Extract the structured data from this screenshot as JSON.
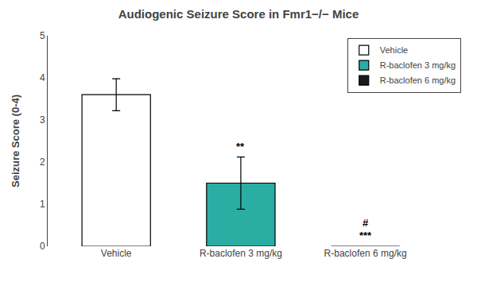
{
  "chart_data": {
    "type": "bar",
    "title": "Audiogenic Seizure Score in Fmr1−/− Mice",
    "ylabel": "Seizure Score (0-4)",
    "categories": [
      "Vehicle",
      "R-baclofen 3 mg/kg",
      "R-baclofen 6 mg/kg"
    ],
    "values": [
      3.6,
      1.5,
      0.0
    ],
    "errors": [
      0.38,
      0.62,
      0.0
    ],
    "colors": [
      "#ffffff",
      "#2aada3",
      "#1a1a1a"
    ],
    "ylim": [
      0,
      5
    ],
    "yticks": [
      0,
      1,
      2,
      3,
      4,
      5
    ],
    "grid": false,
    "legend": "upper right",
    "annotations": [
      {
        "text": "**",
        "category": "R-baclofen 3 mg/kg"
      },
      {
        "text": "***",
        "category": "R-baclofen 6 mg/kg"
      },
      {
        "text": "#",
        "category": "R-baclofen 6 mg/kg"
      }
    ]
  }
}
